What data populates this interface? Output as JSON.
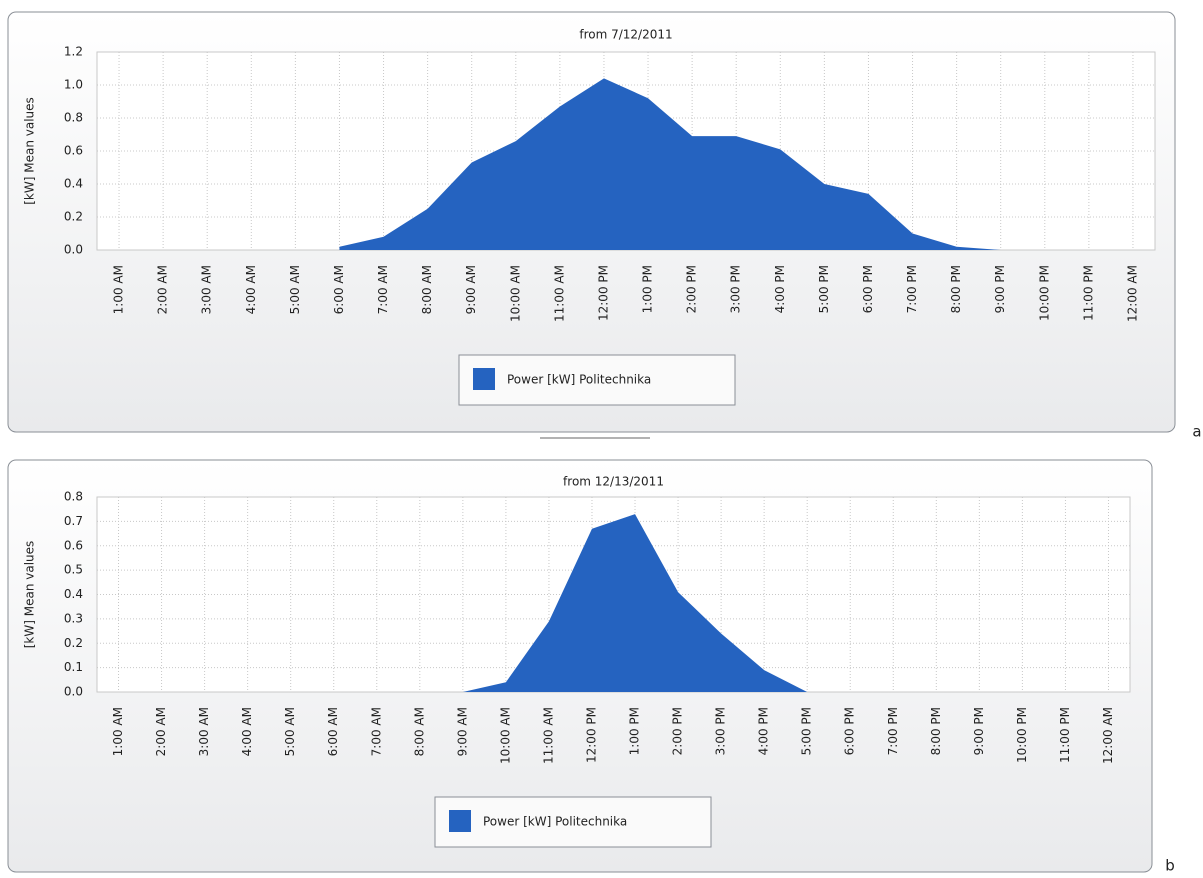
{
  "chart_data": [
    {
      "type": "area",
      "title": "from 7/12/2011",
      "ylabel": "[kW] Mean values",
      "panel_label": "a",
      "categories": [
        "1:00 AM",
        "2:00 AM",
        "3:00 AM",
        "4:00 AM",
        "5:00 AM",
        "6:00 AM",
        "7:00 AM",
        "8:00 AM",
        "9:00 AM",
        "10:00 AM",
        "11:00 AM",
        "12:00 PM",
        "1:00 PM",
        "2:00 PM",
        "3:00 PM",
        "4:00 PM",
        "5:00 PM",
        "6:00 PM",
        "7:00 PM",
        "8:00 PM",
        "9:00 PM",
        "10:00 PM",
        "11:00 PM",
        "12:00 AM"
      ],
      "series": [
        {
          "name": "Power [kW] Politechnika",
          "color": "#2563c0",
          "values": [
            null,
            null,
            null,
            null,
            null,
            0.02,
            0.08,
            0.25,
            0.53,
            0.66,
            0.87,
            1.04,
            0.92,
            0.69,
            0.69,
            0.61,
            0.4,
            0.34,
            0.1,
            0.02,
            0.0,
            null,
            null,
            null
          ]
        }
      ],
      "ylim": [
        0,
        1.2
      ],
      "yticks": [
        {
          "value": 0,
          "label": "0.0"
        },
        0.2,
        0.4,
        0.6,
        0.8,
        {
          "value": 1,
          "label": "1.0"
        },
        1.2
      ],
      "grid": true
    },
    {
      "type": "area",
      "title": "from 12/13/2011",
      "ylabel": "[kW] Mean values",
      "panel_label": "b",
      "categories": [
        "1:00 AM",
        "2:00 AM",
        "3:00 AM",
        "4:00 AM",
        "5:00 AM",
        "6:00 AM",
        "7:00 AM",
        "8:00 AM",
        "9:00 AM",
        "10:00 AM",
        "11:00 AM",
        "12:00 PM",
        "1:00 PM",
        "2:00 PM",
        "3:00 PM",
        "4:00 PM",
        "5:00 PM",
        "6:00 PM",
        "7:00 PM",
        "8:00 PM",
        "9:00 PM",
        "10:00 PM",
        "11:00 PM",
        "12:00 AM"
      ],
      "series": [
        {
          "name": "Power [kW] Politechnika",
          "color": "#2563c0",
          "values": [
            null,
            null,
            null,
            null,
            null,
            null,
            null,
            null,
            0.0,
            0.04,
            0.29,
            0.67,
            0.73,
            0.41,
            0.24,
            0.09,
            0.0,
            null,
            null,
            null,
            null,
            null,
            null,
            null
          ]
        }
      ],
      "ylim": [
        0,
        0.8
      ],
      "yticks": [
        {
          "value": 0,
          "label": "0.0"
        },
        0.1,
        0.2,
        0.3,
        0.4,
        0.5,
        0.6,
        0.7,
        0.8
      ],
      "grid": true
    }
  ]
}
